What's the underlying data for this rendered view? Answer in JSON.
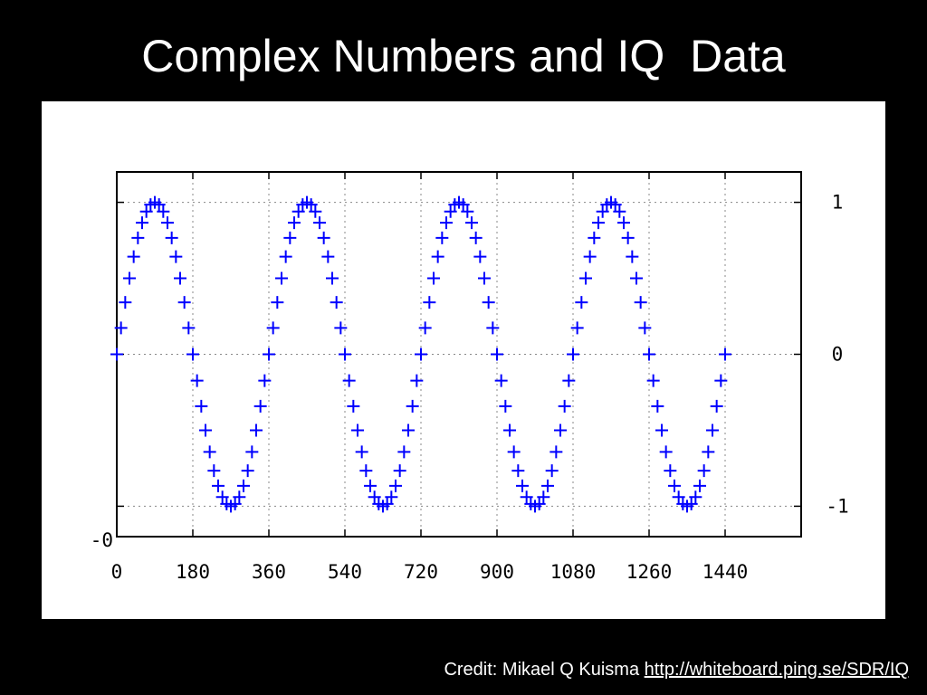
{
  "slide": {
    "title": "Complex Numbers and IQ  Data",
    "credit_prefix": "Credit: Mikael Q Kuisma ",
    "credit_link": "http://whiteboard.ping.se/SDR/IQ"
  },
  "chart_data": {
    "type": "scatter",
    "title": "",
    "xlabel": "",
    "ylabel": "",
    "xlim": [
      0,
      1620
    ],
    "ylim": [
      -1.2,
      1.2
    ],
    "x_ticks": [
      0,
      180,
      360,
      540,
      720,
      900,
      1080,
      1260,
      1440
    ],
    "x_tick_labels": [
      "0",
      "180",
      "360",
      "540",
      "720",
      "900",
      "1080",
      "1260",
      "1440"
    ],
    "y_ticks": [
      1,
      0,
      -1
    ],
    "y_tick_labels": [
      "1",
      "0",
      "-1"
    ],
    "y_axis_side": "right",
    "left_stray_label": "-0",
    "grid": true,
    "marker": "+",
    "colors": {
      "series": "#0000ff",
      "grid": "#888888",
      "frame": "#000000"
    },
    "series": [
      {
        "function": "sin(x degrees)",
        "x_start": 0,
        "x_step": 10,
        "x_end": 1440
      }
    ]
  }
}
